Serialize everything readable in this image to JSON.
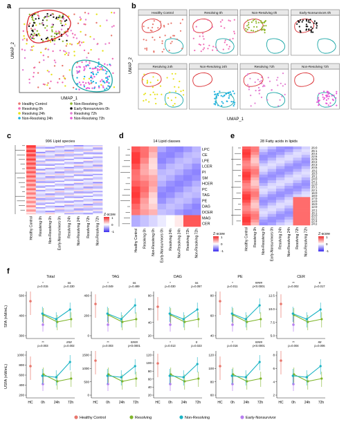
{
  "panel_letters": [
    "a",
    "b",
    "c",
    "d",
    "e",
    "f"
  ],
  "panel_a": {
    "xlabel": "UMAP_1",
    "ylabel": "UMAP_2",
    "legend": [
      {
        "label": "Healthy Control",
        "color": "#e8776d"
      },
      {
        "label": "Non-Resolving 0h",
        "color": "#8fb82c"
      },
      {
        "label": "Resolving 0h",
        "color": "#f06bb5"
      },
      {
        "label": "Early-Nonsurvivors 0h",
        "color": "#111111"
      },
      {
        "label": "Resolving 24h",
        "color": "#e6e21a"
      },
      {
        "label": "Resolving 72h",
        "color": "#e37dd2"
      },
      {
        "label": "Non-Resolving 24h",
        "color": "#18b0e0"
      },
      {
        "label": "Non-Resolving 72h",
        "color": "#e858d8"
      }
    ]
  },
  "panel_b": {
    "xlabel": "UMAP_1",
    "ylabel": "UMAP_2",
    "subpanels": [
      {
        "title": "Healthy Control",
        "color": "#e8776d"
      },
      {
        "title": "Resolving 0h",
        "color": "#f06bb5"
      },
      {
        "title": "Non-Resolving 0h",
        "color": "#8fb82c"
      },
      {
        "title": "Early-Nonsurvivors 0h",
        "color": "#111111"
      },
      {
        "title": "Resolving 24h",
        "color": "#e6e21a"
      },
      {
        "title": "Non-Resolving 24h",
        "color": "#18b0e0"
      },
      {
        "title": "Resolving 72h",
        "color": "#e37dd2"
      },
      {
        "title": "Non-Resolving 72h",
        "color": "#e858d8"
      }
    ]
  },
  "heatmap_columns": [
    "Healthy Control",
    "Resolving 0h",
    "Non-Resolving 0h",
    "Early-Nonsurvivors 0h",
    "Resolving 24h",
    "Non-Resolving 24h",
    "Resolving 72h",
    "Non-Resolving 72h"
  ],
  "panel_c": {
    "title": "996 Lipid species"
  },
  "panel_d": {
    "title": "14 Lipid classes",
    "rows": [
      "LPC",
      "CE",
      "LPE",
      "LCER",
      "PI",
      "SM",
      "HCER",
      "PC",
      "TAG",
      "PE",
      "DAG",
      "DCER",
      "MAG",
      "CER"
    ]
  },
  "panel_e": {
    "title": "28 Fatty acids in lipids",
    "rows": [
      "26:0",
      "26:1",
      "20:4",
      "22:6",
      "22:5",
      "20:2",
      "20:3",
      "20:5",
      "18:2",
      "18:3",
      "18:1",
      "24:0",
      "24:1",
      "22:0",
      "20:1",
      "22:1",
      "16:0",
      "18:0",
      "17:0",
      "14:0",
      "15:0",
      "12:0",
      "14:1",
      "16:1",
      "20:0",
      "22:2",
      "22:4",
      "24:2"
    ]
  },
  "colorbar": {
    "title": "Z-score",
    "ticks": [
      "1",
      "0",
      "-1"
    ]
  },
  "panel_f": {
    "ylabel_top": "SFA (nM/mL)",
    "ylabel_bottom": "USFA (nM/mL)",
    "xticks": [
      "HC",
      "0h",
      "24h",
      "72h"
    ],
    "legend": [
      {
        "label": "Healthy Control",
        "color": "#e8776d"
      },
      {
        "label": "Resolving",
        "color": "#7fb52a"
      },
      {
        "label": "Non-Resolving",
        "color": "#19b3c4"
      },
      {
        "label": "Early-Nonsurvivor",
        "color": "#b77ff0"
      }
    ],
    "plots": [
      {
        "title": "Total",
        "yticks": [
          "500",
          "400",
          "300"
        ],
        "pvals": [
          "*",
          "p=0.015",
          "ns",
          "p=0.330"
        ]
      },
      {
        "title": "TAG",
        "yticks": [
          "400",
          "200",
          "0"
        ],
        "pvals": [
          "*",
          "p=0.049",
          "ns",
          "p=0.489"
        ]
      },
      {
        "title": "DAG",
        "yticks": [
          "80",
          "60",
          "40",
          "20"
        ],
        "pvals": [
          "*",
          "p=0.030",
          "ns",
          "p=0.057"
        ]
      },
      {
        "title": "PE",
        "yticks": [
          "80",
          "60",
          "40"
        ],
        "pvals": [
          "*",
          "p=0.011",
          "####",
          "p<0.0001"
        ]
      },
      {
        "title": "CER",
        "yticks": [
          "12.5",
          "10.0",
          "7.5",
          "5.0"
        ],
        "pvals": [
          "**",
          "p=0.002",
          "#",
          "p=0.017"
        ]
      },
      {
        "title": "",
        "yticks": [
          "1000",
          "800",
          "600",
          "400",
          "200"
        ],
        "pvals": [
          "**",
          "p=0.003",
          "###",
          "p=0.002"
        ]
      },
      {
        "title": "",
        "yticks": [
          "1500",
          "1000",
          "500",
          "0"
        ],
        "pvals": [
          "**",
          "p=0.003",
          "####",
          "p<0.0001"
        ]
      },
      {
        "title": "",
        "yticks": [
          "120",
          "100",
          "80",
          "60",
          "40",
          "20"
        ],
        "pvals": [
          "*",
          "p=0.013",
          "#",
          "p=0.023"
        ]
      },
      {
        "title": "",
        "yticks": [
          "120",
          "100",
          "80",
          "60"
        ],
        "pvals": [
          "*",
          "p=0.016",
          "####",
          "p<0.0001"
        ]
      },
      {
        "title": "",
        "yticks": [
          "8",
          "6",
          "4",
          "2"
        ],
        "pvals": [
          "**",
          "p=0.004",
          "##",
          "p=0.006"
        ]
      }
    ]
  }
}
